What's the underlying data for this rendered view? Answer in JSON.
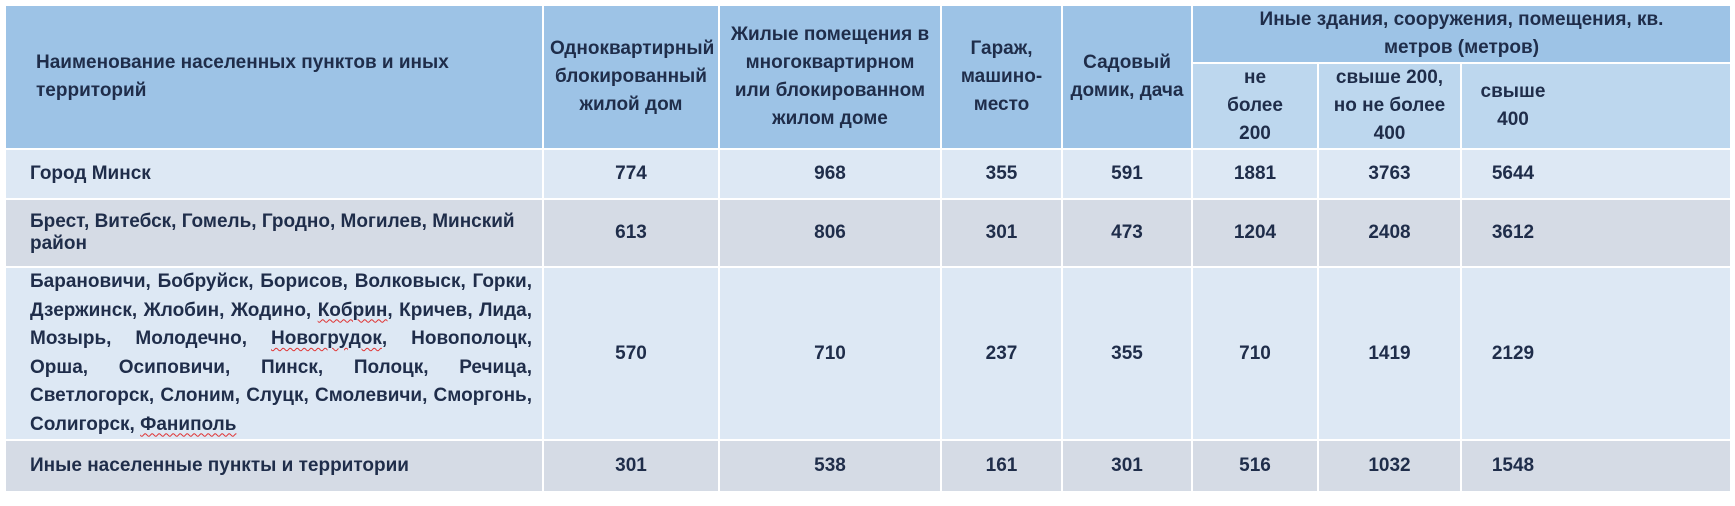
{
  "header": {
    "col_name": "Наименование населенных пунктов и иных территорий",
    "col_house": "Одноквартирный блокированный жилой дом",
    "col_apartment": "Жилые помещения в многоквартирном или блокированном жилом доме",
    "col_garage": "Гараж, машино-место",
    "col_garden": "Садовый домик, дача",
    "col_other": "Иные здания, сооружения, помещения, кв. метров (метров)",
    "sub_lt200": "не более 200",
    "sub_200_400": "свыше 200, но не более 400",
    "sub_gt400": "свыше 400"
  },
  "rows": [
    {
      "name": "Город Минск",
      "values": [
        "774",
        "968",
        "355",
        "591",
        "1881",
        "3763",
        "5644"
      ]
    },
    {
      "name": "Брест, Витебск, Гомель, Гродно, Могилев, Минский район",
      "values": [
        "613",
        "806",
        "301",
        "473",
        "1204",
        "2408",
        "3612"
      ]
    },
    {
      "name_parts": {
        "a": "Барановичи, Бобруйск, Борисов, Волковыск, Горки, Дзержинск, Жлобин, Жодино, ",
        "b": "Кобрин",
        "c": ", Кричев, Лида, Мозырь, Молодечно, ",
        "d": "Новогрудок",
        "e": ", Новополоцк, Орша, Осиповичи, Пинск, Полоцк, Речица, Светлогорск, Слоним, Слуцк, Смолевичи, Сморгонь, Солигорск, ",
        "f": "Фаниполь"
      },
      "values": [
        "570",
        "710",
        "237",
        "355",
        "710",
        "1419",
        "2129"
      ]
    },
    {
      "name": "Иные населенные пункты и территории",
      "values": [
        "301",
        "538",
        "161",
        "301",
        "516",
        "1032",
        "1548"
      ]
    }
  ]
}
